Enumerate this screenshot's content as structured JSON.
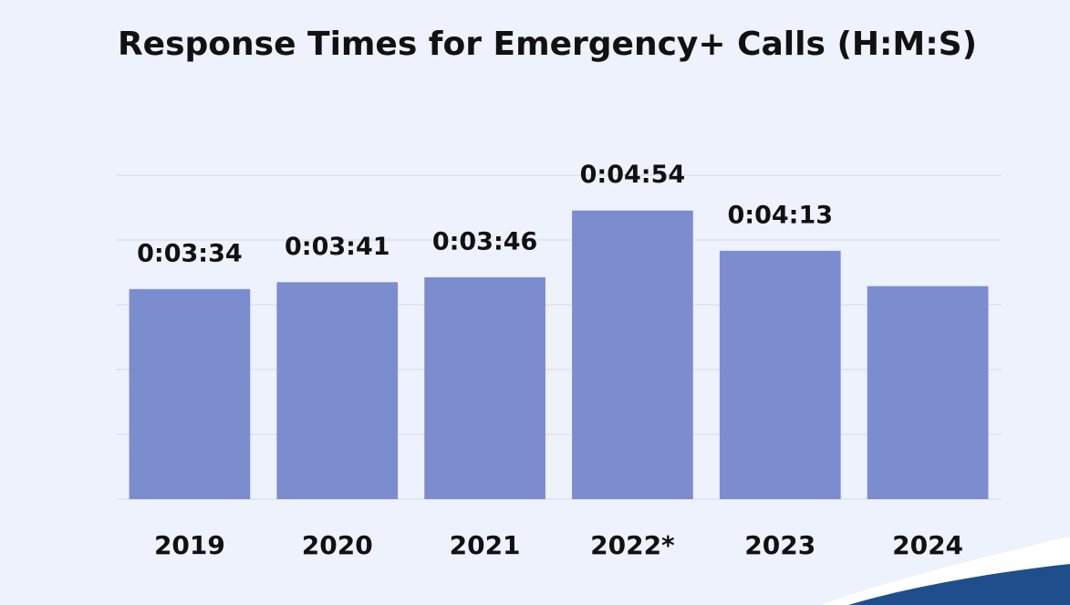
{
  "chart_data": {
    "type": "bar",
    "title": "Response Times for Emergency+ Calls (H:M:S)",
    "categories": [
      "2019",
      "2020",
      "2021",
      "2022*",
      "2023",
      "2024"
    ],
    "values": [
      214,
      221,
      226,
      294,
      253,
      217
    ],
    "value_labels": [
      "0:03:34",
      "0:03:41",
      "0:03:46",
      "0:04:54",
      "0:04:13",
      null
    ],
    "color": "#7b8dcf",
    "ylim": [
      0,
      330
    ],
    "yticks": [
      0,
      66,
      132,
      198,
      264,
      330
    ],
    "grid": true
  }
}
